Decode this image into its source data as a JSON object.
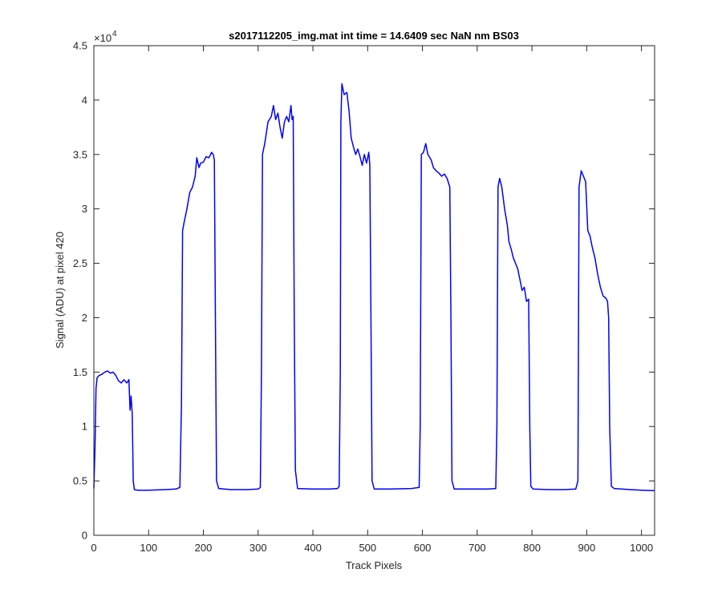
{
  "chart_data": {
    "type": "line",
    "title": "s2017112205_img.mat int time = 14.6409 sec  NaN nm BS03",
    "xlabel": "Track Pixels",
    "ylabel": "Signal (ADU) at pixel 420",
    "xlim": [
      0,
      1024
    ],
    "ylim": [
      0,
      45000
    ],
    "y_exponent_label": "×10",
    "y_exponent_power": "4",
    "x_ticks": [
      0,
      100,
      200,
      300,
      400,
      500,
      600,
      700,
      800,
      900,
      1000
    ],
    "x_tick_labels": [
      "0",
      "100",
      "200",
      "300",
      "400",
      "500",
      "600",
      "700",
      "800",
      "900",
      "1000"
    ],
    "y_ticks": [
      0,
      5000,
      10000,
      15000,
      20000,
      25000,
      30000,
      35000,
      40000,
      45000
    ],
    "y_tick_labels": [
      "0",
      "0.5",
      "1",
      "1.5",
      "2",
      "2.5",
      "3",
      "3.5",
      "4",
      "4.5"
    ],
    "grid": false,
    "colors": {
      "series": "#0000ff",
      "axes": "#262626"
    },
    "series": [
      {
        "color": "#0000ff",
        "points": [
          [
            0,
            4300
          ],
          [
            2,
            8000
          ],
          [
            4,
            13500
          ],
          [
            6,
            14500
          ],
          [
            10,
            14700
          ],
          [
            15,
            14800
          ],
          [
            20,
            15000
          ],
          [
            25,
            15100
          ],
          [
            30,
            14900
          ],
          [
            35,
            15000
          ],
          [
            40,
            14700
          ],
          [
            45,
            14200
          ],
          [
            50,
            14000
          ],
          [
            55,
            14300
          ],
          [
            60,
            14000
          ],
          [
            64,
            14300
          ],
          [
            66,
            11500
          ],
          [
            68,
            12800
          ],
          [
            70,
            11200
          ],
          [
            71,
            8000
          ],
          [
            72,
            5000
          ],
          [
            74,
            4200
          ],
          [
            80,
            4150
          ],
          [
            100,
            4150
          ],
          [
            130,
            4200
          ],
          [
            150,
            4250
          ],
          [
            157,
            4400
          ],
          [
            160,
            12000
          ],
          [
            162,
            28000
          ],
          [
            165,
            28800
          ],
          [
            170,
            30000
          ],
          [
            175,
            31500
          ],
          [
            180,
            32000
          ],
          [
            185,
            33000
          ],
          [
            188,
            34700
          ],
          [
            192,
            33800
          ],
          [
            195,
            34200
          ],
          [
            200,
            34300
          ],
          [
            205,
            34800
          ],
          [
            210,
            34700
          ],
          [
            215,
            35200
          ],
          [
            218,
            35000
          ],
          [
            220,
            34500
          ],
          [
            222,
            20000
          ],
          [
            224,
            5000
          ],
          [
            228,
            4300
          ],
          [
            250,
            4200
          ],
          [
            280,
            4200
          ],
          [
            300,
            4250
          ],
          [
            304,
            4400
          ],
          [
            306,
            15000
          ],
          [
            308,
            35000
          ],
          [
            312,
            36000
          ],
          [
            318,
            38000
          ],
          [
            324,
            38500
          ],
          [
            328,
            39500
          ],
          [
            332,
            38200
          ],
          [
            336,
            38800
          ],
          [
            340,
            37500
          ],
          [
            344,
            36500
          ],
          [
            348,
            38000
          ],
          [
            352,
            38500
          ],
          [
            356,
            38000
          ],
          [
            360,
            39500
          ],
          [
            362,
            38200
          ],
          [
            364,
            38500
          ],
          [
            366,
            20000
          ],
          [
            368,
            6000
          ],
          [
            372,
            4300
          ],
          [
            400,
            4250
          ],
          [
            430,
            4250
          ],
          [
            445,
            4300
          ],
          [
            448,
            4500
          ],
          [
            450,
            15000
          ],
          [
            451,
            38000
          ],
          [
            453,
            41500
          ],
          [
            457,
            40500
          ],
          [
            462,
            40700
          ],
          [
            466,
            39000
          ],
          [
            470,
            36500
          ],
          [
            474,
            35700
          ],
          [
            478,
            35000
          ],
          [
            482,
            35500
          ],
          [
            486,
            34800
          ],
          [
            490,
            34000
          ],
          [
            494,
            35000
          ],
          [
            498,
            34200
          ],
          [
            502,
            35200
          ],
          [
            504,
            34000
          ],
          [
            506,
            20000
          ],
          [
            508,
            5000
          ],
          [
            512,
            4250
          ],
          [
            540,
            4250
          ],
          [
            580,
            4300
          ],
          [
            594,
            4400
          ],
          [
            596,
            10000
          ],
          [
            598,
            35000
          ],
          [
            602,
            35200
          ],
          [
            606,
            36000
          ],
          [
            610,
            35000
          ],
          [
            616,
            34500
          ],
          [
            620,
            33800
          ],
          [
            625,
            33500
          ],
          [
            630,
            33300
          ],
          [
            635,
            33000
          ],
          [
            640,
            33200
          ],
          [
            645,
            32800
          ],
          [
            650,
            32000
          ],
          [
            652,
            20000
          ],
          [
            654,
            5000
          ],
          [
            658,
            4250
          ],
          [
            690,
            4250
          ],
          [
            720,
            4250
          ],
          [
            734,
            4300
          ],
          [
            736,
            10000
          ],
          [
            738,
            32000
          ],
          [
            741,
            32800
          ],
          [
            745,
            32000
          ],
          [
            750,
            30000
          ],
          [
            755,
            28500
          ],
          [
            758,
            27000
          ],
          [
            762,
            26300
          ],
          [
            766,
            25500
          ],
          [
            770,
            25000
          ],
          [
            774,
            24500
          ],
          [
            778,
            23500
          ],
          [
            782,
            22500
          ],
          [
            786,
            22800
          ],
          [
            790,
            21500
          ],
          [
            794,
            21700
          ],
          [
            796,
            10000
          ],
          [
            798,
            4500
          ],
          [
            802,
            4250
          ],
          [
            830,
            4200
          ],
          [
            860,
            4200
          ],
          [
            880,
            4250
          ],
          [
            884,
            5000
          ],
          [
            886,
            32000
          ],
          [
            890,
            33500
          ],
          [
            894,
            33000
          ],
          [
            898,
            32500
          ],
          [
            902,
            28000
          ],
          [
            906,
            27500
          ],
          [
            910,
            26500
          ],
          [
            915,
            25500
          ],
          [
            920,
            24000
          ],
          [
            925,
            22800
          ],
          [
            930,
            22000
          ],
          [
            935,
            21800
          ],
          [
            938,
            21500
          ],
          [
            940,
            20000
          ],
          [
            942,
            10000
          ],
          [
            945,
            4500
          ],
          [
            950,
            4300
          ],
          [
            980,
            4200
          ],
          [
            1000,
            4150
          ],
          [
            1024,
            4100
          ]
        ]
      }
    ]
  }
}
